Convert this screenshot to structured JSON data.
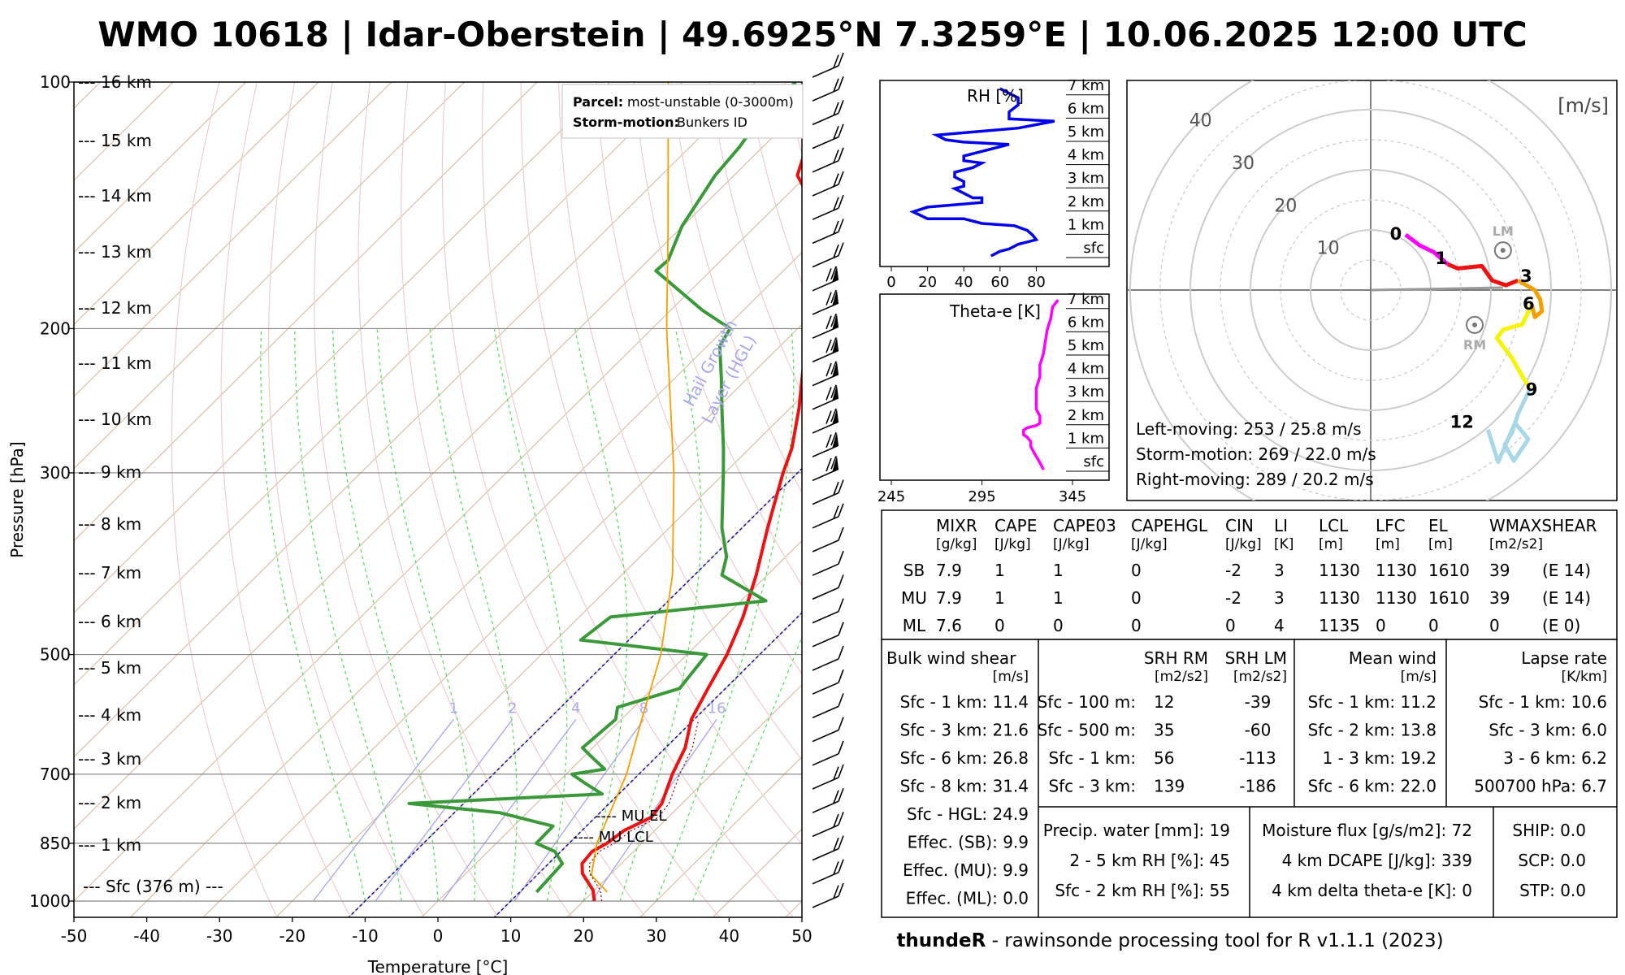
{
  "title": "WMO 10618 | Idar-Oberstein | 49.6925°N 7.3259°E | 10.06.2025 12:00 UTC",
  "footer": {
    "brand": "thundeR",
    "rest": " - rawinsonde processing tool for R v1.1.1 (2023)"
  },
  "colors": {
    "temperature": "#ee1111",
    "dewpoint": "#3a9a3a",
    "parcel": "#f5a000",
    "hgl": "#1a1aaa",
    "rh": "#0000ee",
    "thetae": "#ff00ff"
  },
  "skewt": {
    "ylabel": "Pressure [hPa]",
    "xlabel": "Temperature [°C]",
    "pressure_ticks": [
      100,
      200,
      300,
      500,
      700,
      850,
      1000
    ],
    "temp_ticks": [
      -50,
      -40,
      -30,
      -20,
      -10,
      0,
      10,
      20,
      30,
      40,
      50
    ],
    "mixing_ratio_labels": [
      "1",
      "2",
      "4",
      "8",
      "16"
    ],
    "height_labels": [
      "--- Sfc (376 m) ---",
      "--- 1 km",
      "--- 2 km",
      "--- 3 km",
      "--- 4 km",
      "--- 5 km",
      "--- 6 km",
      "--- 7 km",
      "--- 8 km",
      "--- 9 km",
      "--- 10 km",
      "--- 11 km",
      "--- 12 km",
      "--- 13 km",
      "--- 14 km",
      "--- 15 km",
      "--- 16 km"
    ],
    "hgl_label_1": "Hail Growth",
    "hgl_label_2": "Layer (HGL)",
    "mu_el": "---- MU EL",
    "mu_lcl": "---- MU LCL",
    "legend": {
      "parcel_key": "Parcel:",
      "parcel_val": "most-unstable (0-3000m)",
      "storm_key": "Storm-motion:",
      "storm_val": "Bunkers ID"
    }
  },
  "chart_data": [
    {
      "type": "line",
      "name": "skew-t",
      "xlabel": "Temperature [°C]",
      "ylabel": "Pressure [hPa]",
      "xlim": [
        -50,
        50
      ],
      "ylim": [
        1050,
        100
      ],
      "series": [
        {
          "name": "temperature",
          "points": [
            [
              1000,
              21.5
            ],
            [
              970,
              19.8
            ],
            [
              925,
              16
            ],
            [
              900,
              14.6
            ],
            [
              870,
              14.3
            ],
            [
              850,
              15.2
            ],
            [
              820,
              15.8
            ],
            [
              790,
              17.7
            ],
            [
              760,
              17.2
            ],
            [
              700,
              14.6
            ],
            [
              650,
              12.7
            ],
            [
              600,
              9.6
            ],
            [
              550,
              7.6
            ],
            [
              500,
              5.5
            ],
            [
              450,
              2.5
            ],
            [
              400,
              -1.5
            ],
            [
              350,
              -6.5
            ],
            [
              300,
              -12
            ],
            [
              280,
              -14.2
            ],
            [
              250,
              -18.8
            ],
            [
              230,
              -22.5
            ],
            [
              200,
              -28.7
            ],
            [
              190,
              -28.8
            ],
            [
              180,
              -29.6
            ],
            [
              170,
              -33.5
            ],
            [
              160,
              -38.5
            ],
            [
              150,
              -42
            ],
            [
              140,
              -45.7
            ],
            [
              130,
              -51.3
            ],
            [
              120,
              -54
            ],
            [
              110,
              -58.6
            ],
            [
              100,
              -62
            ]
          ]
        },
        {
          "name": "dewpoint",
          "points": [
            [
              975,
              12.3
            ],
            [
              900,
              11.9
            ],
            [
              870,
              9.2
            ],
            [
              850,
              5.5
            ],
            [
              810,
              5.4
            ],
            [
              780,
              -3.8
            ],
            [
              760,
              -17.5
            ],
            [
              740,
              7.7
            ],
            [
              720,
              4.2
            ],
            [
              700,
              0.8
            ],
            [
              690,
              4.6
            ],
            [
              670,
              1.6
            ],
            [
              650,
              -1.4
            ],
            [
              600,
              -0.8
            ],
            [
              580,
              -2.2
            ],
            [
              550,
              3.7
            ],
            [
              500,
              2.7
            ],
            [
              480,
              -16.6
            ],
            [
              450,
              -15.7
            ],
            [
              430,
              3.4
            ],
            [
              400,
              -6.2
            ],
            [
              380,
              -8.1
            ],
            [
              350,
              -12.8
            ],
            [
              300,
              -20.2
            ],
            [
              280,
              -23.6
            ],
            [
              250,
              -29.4
            ],
            [
              230,
              -33.6
            ],
            [
              210,
              -38.3
            ],
            [
              200,
              -39.3
            ],
            [
              190,
              -45.6
            ],
            [
              170,
              -57.5
            ],
            [
              165,
              -57.3
            ],
            [
              150,
              -60.1
            ],
            [
              130,
              -62.6
            ],
            [
              120,
              -63.2
            ],
            [
              110,
              -64.5
            ],
            [
              100,
              -64.5
            ]
          ]
        },
        {
          "name": "parcel",
          "points": [
            [
              975,
              22
            ],
            [
              930,
              17.5
            ],
            [
              850,
              13.8
            ],
            [
              700,
              8.3
            ],
            [
              600,
              2.8
            ],
            [
              500,
              -3.6
            ],
            [
              400,
              -13
            ],
            [
              300,
              -27
            ],
            [
              200,
              -48
            ],
            [
              150,
              -62
            ],
            [
              100,
              -82
            ]
          ]
        }
      ]
    },
    {
      "type": "line",
      "name": "RH [%]",
      "xlim": [
        0,
        100
      ],
      "x_ticks": [
        0,
        20,
        40,
        60,
        80
      ],
      "y_labels": [
        "sfc",
        "1 km",
        "2 km",
        "3 km",
        "4 km",
        "5 km",
        "6 km",
        "7 km"
      ],
      "points": [
        [
          55,
          0
        ],
        [
          60,
          0.2
        ],
        [
          65,
          0.3
        ],
        [
          70,
          0.5
        ],
        [
          80,
          0.7
        ],
        [
          78,
          0.9
        ],
        [
          75,
          1.1
        ],
        [
          68,
          1.3
        ],
        [
          50,
          1.4
        ],
        [
          40,
          1.6
        ],
        [
          20,
          1.6
        ],
        [
          12,
          1.9
        ],
        [
          20,
          2.1
        ],
        [
          50,
          2.3
        ],
        [
          50,
          2.5
        ],
        [
          45,
          2.5
        ],
        [
          40,
          2.7
        ],
        [
          35,
          2.9
        ],
        [
          40,
          3.0
        ],
        [
          40,
          3.2
        ],
        [
          35,
          3.4
        ],
        [
          35,
          3.6
        ],
        [
          45,
          3.8
        ],
        [
          50,
          4.0
        ],
        [
          40,
          4.1
        ],
        [
          40,
          4.3
        ],
        [
          50,
          4.5
        ],
        [
          60,
          4.7
        ],
        [
          65,
          4.8
        ],
        [
          40,
          4.9
        ],
        [
          30,
          5.0
        ],
        [
          25,
          5.2
        ],
        [
          40,
          5.3
        ],
        [
          70,
          5.5
        ],
        [
          90,
          5.8
        ],
        [
          65,
          5.9
        ],
        [
          65,
          6.2
        ],
        [
          70,
          6.5
        ],
        [
          70,
          6.8
        ],
        [
          65,
          7.0
        ],
        [
          60,
          7.2
        ]
      ]
    },
    {
      "type": "line",
      "name": "Theta-e [K]",
      "xlim": [
        245,
        375
      ],
      "x_ticks": [
        245,
        295,
        345
      ],
      "y_labels": [
        "sfc",
        "1 km",
        "2 km",
        "3 km",
        "4 km",
        "5 km",
        "6 km",
        "7 km"
      ],
      "points": [
        [
          329,
          0
        ],
        [
          327,
          0.3
        ],
        [
          324,
          0.7
        ],
        [
          322,
          1.0
        ],
        [
          322,
          1.2
        ],
        [
          320,
          1.4
        ],
        [
          318,
          1.5
        ],
        [
          318,
          1.7
        ],
        [
          320,
          1.8
        ],
        [
          325,
          1.9
        ],
        [
          327,
          2.0
        ],
        [
          327,
          2.3
        ],
        [
          325,
          2.6
        ],
        [
          325,
          3.0
        ],
        [
          325,
          3.5
        ],
        [
          327,
          4.0
        ],
        [
          327,
          4.5
        ],
        [
          329,
          5.0
        ],
        [
          330,
          5.5
        ],
        [
          331,
          6.0
        ],
        [
          333,
          6.5
        ],
        [
          334,
          7.0
        ],
        [
          337,
          7.3
        ]
      ]
    },
    {
      "type": "line",
      "name": "hodograph",
      "unit": "[m/s]",
      "rings": [
        10,
        20,
        30,
        40
      ],
      "labels": [
        "0",
        "1",
        "3",
        "6",
        "9",
        "12"
      ],
      "series": [
        {
          "name": "0-1 km",
          "color": "#ff00ff",
          "points": [
            [
              5.8,
              9.2
            ],
            [
              8.2,
              7.4
            ],
            [
              10.5,
              6.3
            ],
            [
              12.8,
              4.3
            ]
          ]
        },
        {
          "name": "1-3 km",
          "color": "#ee1111",
          "points": [
            [
              12.8,
              4.3
            ],
            [
              14.5,
              3.6
            ],
            [
              18.5,
              4.0
            ],
            [
              20.2,
              1.6
            ],
            [
              22.5,
              0.8
            ],
            [
              24.5,
              1.6
            ]
          ]
        },
        {
          "name": "3-6 km",
          "color": "#f5a000",
          "points": [
            [
              24.5,
              1.6
            ],
            [
              27.3,
              0
            ],
            [
              28.2,
              -1.6
            ],
            [
              28.5,
              -3.5
            ],
            [
              27.3,
              -4.5
            ],
            [
              26.8,
              -2.4
            ]
          ]
        },
        {
          "name": "6-9 km",
          "color": "#f5f500",
          "points": [
            [
              26.8,
              -2.4
            ],
            [
              25.2,
              -5.7
            ],
            [
              22.0,
              -6.6
            ],
            [
              21.0,
              -8.0
            ],
            [
              23.5,
              -11.3
            ],
            [
              25.3,
              -14.5
            ],
            [
              26.5,
              -16.4
            ]
          ]
        },
        {
          "name": "9-12 km",
          "color": "#a8d8e8",
          "points": [
            [
              26.5,
              -16.4
            ],
            [
              24.5,
              -20.6
            ],
            [
              23.5,
              -23.8
            ],
            [
              22.3,
              -25.7
            ],
            [
              23.8,
              -28.4
            ],
            [
              26.2,
              -24.8
            ],
            [
              24.0,
              -22.1
            ],
            [
              21.2,
              -28.6
            ],
            [
              19.5,
              -23.2
            ]
          ]
        }
      ],
      "markers": [
        {
          "label": "LM",
          "u": 22.0,
          "v": 6.6
        },
        {
          "label": "RM",
          "u": 17.3,
          "v": -5.8
        }
      ],
      "mean_vector": [
        22.0,
        0.4
      ]
    }
  ],
  "hodo": {
    "unit_label": "[m/s]",
    "ring_labels": [
      "10",
      "20",
      "30",
      "40"
    ],
    "lm_label": "LM",
    "rm_label": "RM",
    "left_moving": "Left-moving: 253 / 25.8 m/s",
    "storm_motion": "Storm-motion: 269 / 22.0 m/s",
    "right_moving": "Right-moving: 289 / 20.2 m/s"
  },
  "rh_panel": {
    "title": "RH [%]"
  },
  "thetae_panel": {
    "title": "Theta-e [K]"
  },
  "table1": {
    "headers": [
      "MIXR",
      "CAPE",
      "CAPE03",
      "CAPEHGL",
      "CIN",
      "LI",
      "LCL",
      "LFC",
      "EL",
      "WMAXSHEAR"
    ],
    "units": [
      "[g/kg]",
      "[J/kg]",
      "[J/kg]",
      "[J/kg]",
      "[J/kg]",
      "[K]",
      "[m]",
      "[m]",
      "[m]",
      "[m2/s2]"
    ],
    "rows": [
      [
        "SB",
        "7.9",
        "1",
        "1",
        "0",
        "-2",
        "3",
        "1130",
        "1130",
        "1610",
        "39",
        "(E 14)"
      ],
      [
        "MU",
        "7.9",
        "1",
        "1",
        "0",
        "-2",
        "3",
        "1130",
        "1130",
        "1610",
        "39",
        "(E 14)"
      ],
      [
        "ML",
        "7.6",
        "0",
        "0",
        "0",
        "0",
        "4",
        "1135",
        "0",
        "0",
        "0",
        "(E 0)"
      ]
    ]
  },
  "table2": {
    "bws_title": "Bulk wind shear",
    "bws_unit": "[m/s]",
    "bws_rows": [
      "Sfc - 1 km: 11.4",
      "Sfc - 3 km: 21.6",
      "Sfc - 6 km: 26.8",
      "Sfc - 8 km: 31.4",
      "Sfc - HGL: 24.9",
      "Effec. (SB): 9.9",
      "Effec. (MU): 9.9",
      "Effec. (ML): 0.0"
    ],
    "srh_rm_title": "SRH RM",
    "srh_lm_title": "SRH LM",
    "srh_unit": "[m2/s2]",
    "srh_rows": [
      [
        "Sfc - 100 m:",
        "12",
        "-39"
      ],
      [
        "Sfc - 500 m:",
        "35",
        "-60"
      ],
      [
        "Sfc - 1 km:",
        "56",
        "-113"
      ],
      [
        "Sfc - 3 km:",
        "139",
        "-186"
      ]
    ],
    "mw_title": "Mean wind",
    "mw_unit": "[m/s]",
    "mw_rows": [
      "Sfc - 1 km: 11.2",
      "Sfc - 2 km: 13.8",
      "1 - 3 km: 19.2",
      "Sfc - 6 km: 22.0"
    ],
    "lr_title": "Lapse rate",
    "lr_unit": "[K/km]",
    "lr_rows": [
      "Sfc - 1 km: 10.6",
      "Sfc - 3 km: 6.0",
      "3 - 6 km: 6.2",
      "500700 hPa: 6.7"
    ],
    "misc1": [
      "Precip. water [mm]: 19",
      "2 - 5 km RH [%]: 45",
      "Sfc - 2 km RH [%]: 55"
    ],
    "misc2": [
      "Moisture flux [g/s/m2]: 72",
      "4 km DCAPE [J/kg]: 339",
      "4 km delta theta-e [K]: 0"
    ],
    "indices": [
      "SHIP: 0.0",
      "SCP: 0.0",
      "STP: 0.0"
    ]
  }
}
